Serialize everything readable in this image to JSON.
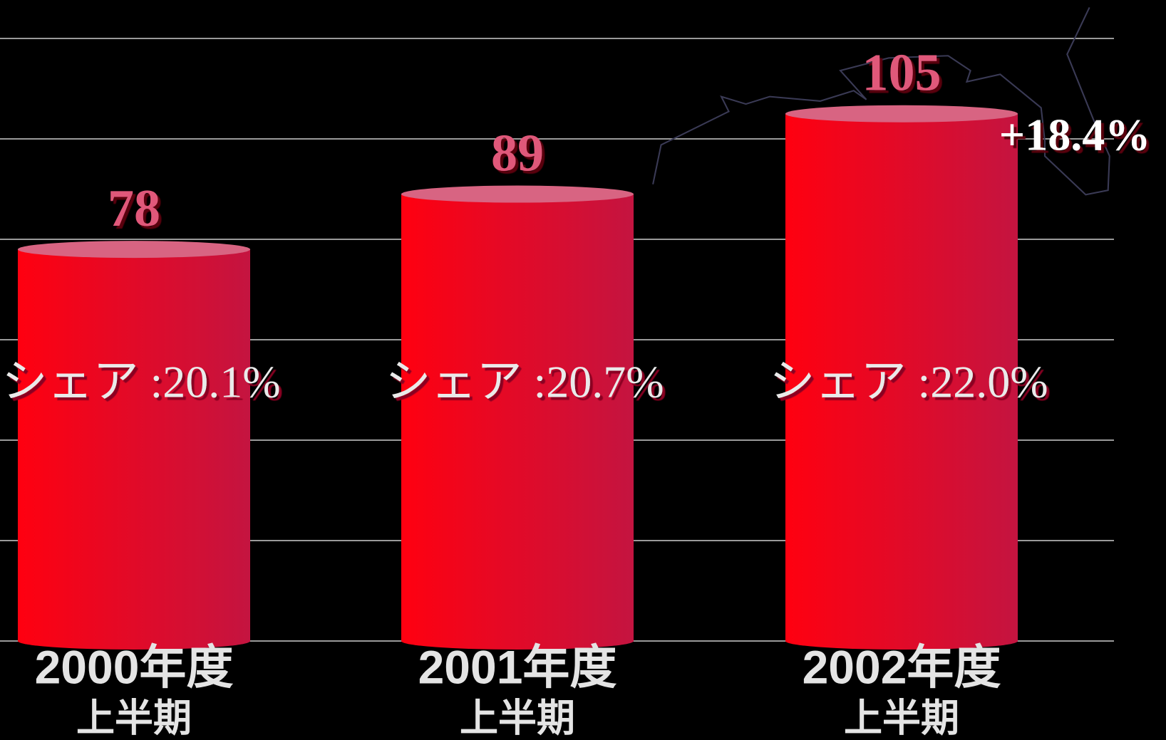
{
  "chart_data": {
    "type": "bar",
    "categories": [
      [
        "2000年度",
        "上半期"
      ],
      [
        "2001年度",
        "上半期"
      ],
      [
        "2002年度",
        "上半期"
      ]
    ],
    "values": [
      78,
      89,
      105
    ],
    "annotations": [
      "シェア :20.1%",
      "シェア :20.7%",
      "シェア :22.0%"
    ],
    "growth_label": "+18.4%",
    "color": [
      "#ff0010",
      "#c41440"
    ],
    "top_color": "#d86482",
    "ylim": [
      0,
      120
    ],
    "yticks": [
      0,
      20,
      40,
      60,
      80,
      100,
      120
    ],
    "grid": true
  }
}
